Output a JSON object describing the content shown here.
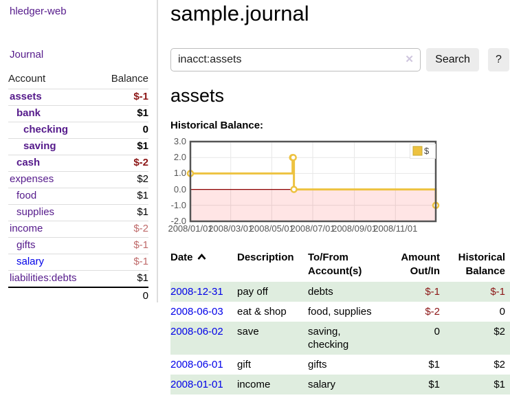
{
  "sidebar": {
    "app_title": "hledger-web",
    "journal_link": "Journal",
    "accounts_table": {
      "headers": {
        "account": "Account",
        "balance": "Balance"
      },
      "rows": [
        {
          "name": "assets",
          "level": 1,
          "bold": true,
          "link": "visited",
          "balance": "$-1",
          "balance_style": "neg-strong"
        },
        {
          "name": "bank",
          "level": 2,
          "bold": true,
          "link": "visited",
          "balance": "$1",
          "balance_style": "pos"
        },
        {
          "name": "checking",
          "level": 3,
          "bold": true,
          "link": "visited",
          "balance": "0",
          "balance_style": "pos"
        },
        {
          "name": "saving",
          "level": 3,
          "bold": true,
          "link": "visited",
          "balance": "$1",
          "balance_style": "pos"
        },
        {
          "name": "cash",
          "level": 2,
          "bold": true,
          "link": "visited",
          "balance": "$-2",
          "balance_style": "neg-strong"
        },
        {
          "name": "expenses",
          "level": 1,
          "bold": false,
          "link": "visited",
          "balance": "$2",
          "balance_style": "pos"
        },
        {
          "name": "food",
          "level": 2,
          "bold": false,
          "link": "visited",
          "balance": "$1",
          "balance_style": "pos"
        },
        {
          "name": "supplies",
          "level": 2,
          "bold": false,
          "link": "visited",
          "balance": "$1",
          "balance_style": "pos"
        },
        {
          "name": "income",
          "level": 1,
          "bold": false,
          "link": "visited",
          "balance": "$-2",
          "balance_style": "neg-soft"
        },
        {
          "name": "gifts",
          "level": 2,
          "bold": false,
          "link": "visited",
          "balance": "$-1",
          "balance_style": "neg-soft"
        },
        {
          "name": "salary",
          "level": 2,
          "bold": false,
          "link": "unvisited",
          "balance": "$-1",
          "balance_style": "neg-soft"
        },
        {
          "name": "liabilities:debts",
          "level": 1,
          "bold": false,
          "link": "visited",
          "balance": "$1",
          "balance_style": "pos"
        }
      ],
      "total": "0"
    }
  },
  "main": {
    "title": "sample.journal",
    "search": {
      "value": "inacct:assets",
      "placeholder": "",
      "clear_icon": "✕",
      "button_label": "Search",
      "help_label": "?"
    },
    "account_heading": "assets",
    "chart_label": "Historical Balance:",
    "chart_data": {
      "type": "line",
      "line_style": "steps",
      "title": "Historical Balance",
      "series": [
        {
          "name": "$",
          "x": [
            "2008-01-01",
            "2008-06-01",
            "2008-06-02",
            "2008-06-03",
            "2008-12-31"
          ],
          "y": [
            1,
            2,
            2,
            0,
            -1
          ]
        }
      ],
      "xlim": [
        "2008-01-01",
        "2008-12-31"
      ],
      "ylim": [
        -2,
        3
      ],
      "x_ticks": [
        "2008/01/01",
        "2008/03/01",
        "2008/05/01",
        "2008/07/01",
        "2008/09/01",
        "2008/11/01"
      ],
      "y_ticks": [
        3.0,
        2.0,
        1.0,
        0.0,
        -1.0,
        -2.0
      ],
      "grid": true,
      "legend": {
        "label": "$",
        "position": "top-right"
      },
      "colors": {
        "line": "#edc240",
        "marker_fill": "#ffffff",
        "zero_line": "#8b0000",
        "negative_region": "rgba(255,0,0,0.10)",
        "frame": "#545454",
        "gridline": "#e7e7e7"
      }
    },
    "register_table": {
      "sort": "ascending",
      "icons": {
        "sort_ascending": "chevron-up",
        "clear_search": "x"
      },
      "headers": {
        "date": "Date",
        "description": "Description",
        "accounts": "To/From Account(s)",
        "amount": "Amount Out/In",
        "balance": "Historical Balance"
      },
      "rows": [
        {
          "date": "2008-12-31",
          "description": "pay off",
          "accounts": "debts",
          "amount": "$-1",
          "amount_neg": true,
          "balance": "$-1",
          "balance_neg": true,
          "striped": true
        },
        {
          "date": "2008-06-03",
          "description": "eat & shop",
          "accounts": "food, supplies",
          "amount": "$-2",
          "amount_neg": true,
          "balance": "0",
          "balance_neg": false,
          "striped": false
        },
        {
          "date": "2008-06-02",
          "description": "save",
          "accounts": "saving, checking",
          "amount": "0",
          "amount_neg": false,
          "balance": "$2",
          "balance_neg": false,
          "striped": true
        },
        {
          "date": "2008-06-01",
          "description": "gift",
          "accounts": "gifts",
          "amount": "$1",
          "amount_neg": false,
          "balance": "$2",
          "balance_neg": false,
          "striped": false
        },
        {
          "date": "2008-01-01",
          "description": "income",
          "accounts": "salary",
          "amount": "$1",
          "amount_neg": false,
          "balance": "$1",
          "balance_neg": false,
          "striped": true
        }
      ]
    }
  }
}
